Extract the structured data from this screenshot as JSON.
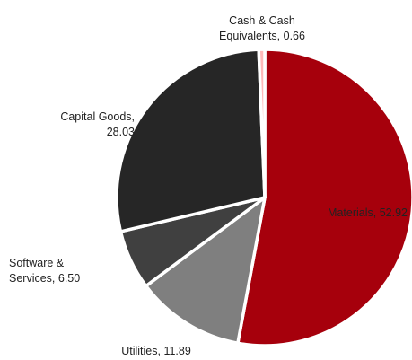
{
  "chart_data": {
    "type": "pie",
    "categories": [
      "Materials",
      "Utilities",
      "Software & Services",
      "Capital Goods",
      "Cash & Cash Equivalents"
    ],
    "values": [
      52.92,
      11.89,
      6.5,
      28.03,
      0.66
    ],
    "colors": [
      "#a6000c",
      "#7f7f7f",
      "#404040",
      "#262626",
      "#ffb9b9"
    ],
    "slice_border_color": "#ffffff",
    "start": "12 o'clock, clockwise"
  },
  "labels": {
    "materials": {
      "name": "Materials",
      "value": "52.92"
    },
    "utilities": {
      "name": "Utilities",
      "value": "11.89"
    },
    "software": {
      "line1": "Software &",
      "line2": "Services, 6.50"
    },
    "capital": {
      "line1": "Capital Goods,",
      "line2": "28.03"
    },
    "cash": {
      "line1": "Cash & Cash",
      "line2": "Equivalents, 0.66"
    }
  }
}
